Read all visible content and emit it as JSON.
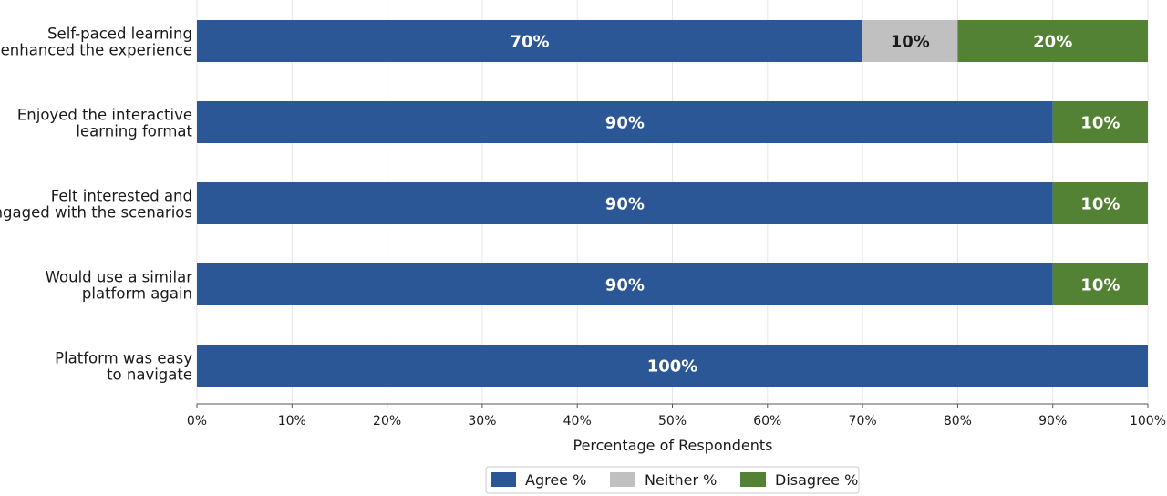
{
  "chart_data": {
    "type": "bar",
    "orientation": "horizontal",
    "stacked": true,
    "categories": [
      "Self-paced learning enhanced the experience",
      "Enjoyed the interactive learning format",
      "Felt interested and engaged with the scenarios",
      "Would use a similar platform again",
      "Platform was easy to navigate"
    ],
    "category_lines": [
      [
        "Self-paced learning",
        "enhanced the experience"
      ],
      [
        "Enjoyed the interactive",
        "learning format"
      ],
      [
        "Felt interested and",
        "engaged with the scenarios"
      ],
      [
        "Would use a similar",
        "platform again"
      ],
      [
        "Platform was easy",
        "to navigate"
      ]
    ],
    "series": [
      {
        "name": "Agree %",
        "values": [
          70,
          90,
          90,
          90,
          100
        ],
        "color": "#2b5797",
        "label_color": "#ffffff"
      },
      {
        "name": "Neither %",
        "values": [
          10,
          0,
          0,
          0,
          0
        ],
        "color": "#c0c0c0",
        "label_color": "#1a1a1a"
      },
      {
        "name": "Disagree %",
        "values": [
          20,
          10,
          10,
          10,
          0
        ],
        "color": "#548235",
        "label_color": "#ffffff"
      }
    ],
    "xlabel": "Percentage of Respondents",
    "ylabel": "",
    "xlim": [
      0,
      100
    ],
    "xticks": [
      0,
      10,
      20,
      30,
      40,
      50,
      60,
      70,
      80,
      90,
      100
    ],
    "tick_suffix": "%",
    "grid": true,
    "legend_position": "bottom-center"
  }
}
